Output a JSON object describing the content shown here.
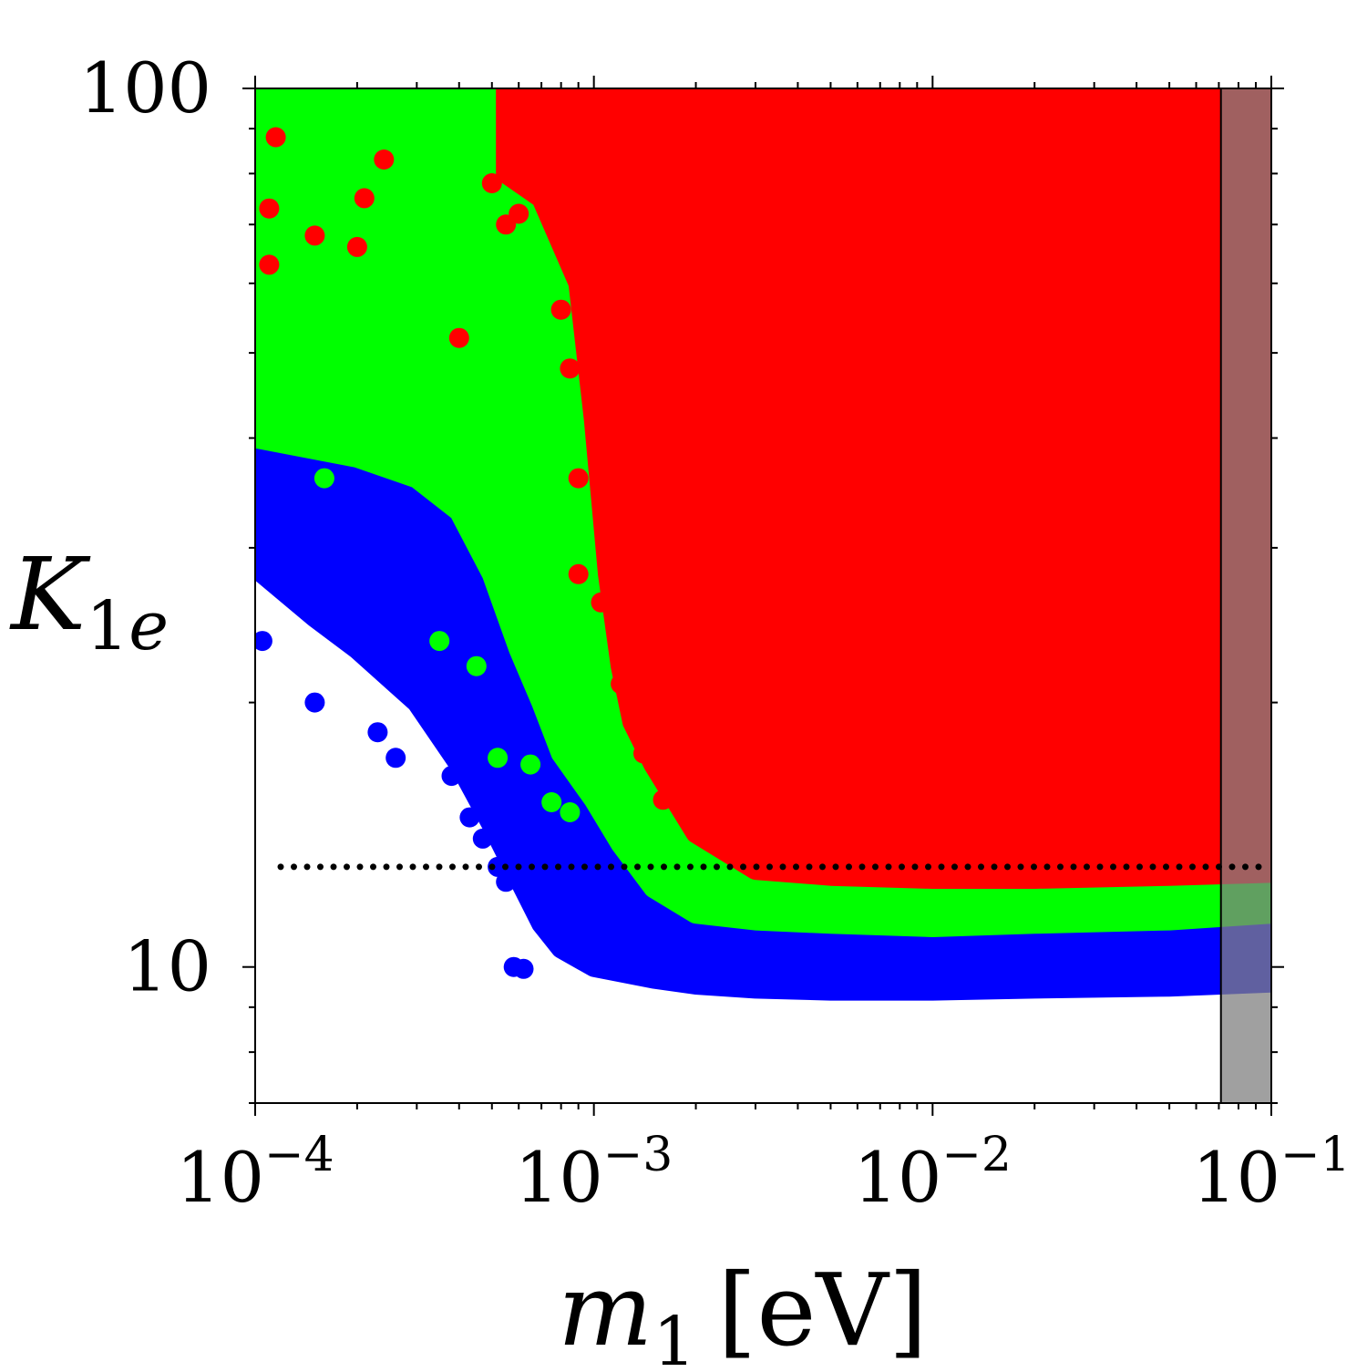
{
  "chart_data": {
    "type": "scatter",
    "title": "",
    "xlabel": {
      "var": "m",
      "sub": "1",
      "unit": "[eV]"
    },
    "ylabel": {
      "var": "K",
      "sub": "1",
      "sub_italic": "e"
    },
    "x_scale": "log",
    "y_scale": "log",
    "xlim": [
      0.0001,
      0.1
    ],
    "ylim": [
      7,
      100
    ],
    "x_ticks": [
      {
        "value": 0.0001,
        "base": "10",
        "exp": "−4"
      },
      {
        "value": 0.001,
        "base": "10",
        "exp": "−3"
      },
      {
        "value": 0.01,
        "base": "10",
        "exp": "−2"
      },
      {
        "value": 0.1,
        "base": "10",
        "exp": "−1"
      }
    ],
    "y_ticks": [
      {
        "value": 10,
        "label": "10"
      },
      {
        "value": 100,
        "label": "100"
      }
    ],
    "grid": false,
    "legend": "none",
    "series": [
      {
        "color": "#0000ff",
        "lower_boundary": [
          [
            0.0001,
            28.5
          ],
          [
            0.00015,
            25
          ],
          [
            0.0002,
            23
          ],
          [
            0.0003,
            20
          ],
          [
            0.0004,
            17
          ],
          [
            0.0005,
            14.5
          ],
          [
            0.0006,
            12.6
          ],
          [
            0.0007,
            11.2
          ],
          [
            0.0008,
            10.5
          ],
          [
            0.001,
            10.0
          ],
          [
            0.0015,
            9.7
          ],
          [
            0.002,
            9.55
          ],
          [
            0.003,
            9.45
          ],
          [
            0.005,
            9.4
          ],
          [
            0.01,
            9.4
          ],
          [
            0.02,
            9.45
          ],
          [
            0.05,
            9.5
          ],
          [
            0.1,
            9.6
          ]
        ],
        "scattered_points": [
          [
            0.000105,
            23.5
          ],
          [
            0.00015,
            20
          ],
          [
            0.00023,
            18.5
          ],
          [
            0.00026,
            17.3
          ],
          [
            0.00028,
            20.6
          ],
          [
            0.00032,
            19.6
          ],
          [
            0.00038,
            16.5
          ],
          [
            0.00043,
            14.8
          ],
          [
            0.00047,
            14.0
          ],
          [
            0.00052,
            13.0
          ],
          [
            0.00055,
            12.5
          ],
          [
            0.00058,
            10.0
          ],
          [
            0.00062,
            9.95
          ]
        ]
      },
      {
        "color": "#00ff00",
        "lower_boundary": [
          [
            0.0001,
            40
          ],
          [
            0.0002,
            38
          ],
          [
            0.0003,
            36
          ],
          [
            0.0004,
            33
          ],
          [
            0.0005,
            28
          ],
          [
            0.0006,
            23
          ],
          [
            0.0007,
            20
          ],
          [
            0.0008,
            17.5
          ],
          [
            0.001,
            15.5
          ],
          [
            0.0012,
            13.8
          ],
          [
            0.0015,
            12.3
          ],
          [
            0.002,
            11.5
          ],
          [
            0.003,
            11.3
          ],
          [
            0.005,
            11.2
          ],
          [
            0.01,
            11.1
          ],
          [
            0.02,
            11.2
          ],
          [
            0.05,
            11.3
          ],
          [
            0.1,
            11.5
          ]
        ],
        "scattered_points": [
          [
            0.000105,
            40.0
          ],
          [
            0.00016,
            36.0
          ],
          [
            0.00025,
            39.0
          ],
          [
            0.00035,
            23.5
          ],
          [
            0.00045,
            22.0
          ],
          [
            0.00052,
            17.3
          ],
          [
            0.00065,
            17.0
          ],
          [
            0.00075,
            15.4
          ],
          [
            0.00085,
            15.0
          ],
          [
            0.0011,
            16.2
          ],
          [
            0.0013,
            13.2
          ]
        ]
      },
      {
        "color": "#ff0000",
        "lower_boundary": [
          [
            0.00055,
            80
          ],
          [
            0.0007,
            75
          ],
          [
            0.0009,
            60
          ],
          [
            0.001,
            42
          ],
          [
            0.0011,
            28
          ],
          [
            0.0012,
            22
          ],
          [
            0.0013,
            19
          ],
          [
            0.0015,
            17
          ],
          [
            0.002,
            14.2
          ],
          [
            0.003,
            12.9
          ],
          [
            0.005,
            12.7
          ],
          [
            0.01,
            12.6
          ],
          [
            0.02,
            12.6
          ],
          [
            0.05,
            12.7
          ],
          [
            0.1,
            12.8
          ]
        ],
        "scattered_points": [
          [
            0.000115,
            88
          ],
          [
            0.00011,
            73
          ],
          [
            0.00011,
            63
          ],
          [
            0.00015,
            68
          ],
          [
            0.0002,
            66
          ],
          [
            0.00021,
            75
          ],
          [
            0.00024,
            83
          ],
          [
            0.0004,
            52
          ],
          [
            0.0005,
            78
          ],
          [
            0.00055,
            70
          ],
          [
            0.0006,
            72
          ],
          [
            0.00065,
            80
          ],
          [
            0.0008,
            56
          ],
          [
            0.00085,
            48
          ],
          [
            0.0009,
            36
          ],
          [
            0.0009,
            28
          ],
          [
            0.001,
            45
          ],
          [
            0.00105,
            26
          ],
          [
            0.0011,
            32
          ],
          [
            0.0012,
            21
          ],
          [
            0.0014,
            17.5
          ],
          [
            0.0016,
            15.5
          ]
        ]
      }
    ],
    "reference_lines": [
      {
        "orientation": "horizontal",
        "y": 13.0,
        "style": "dotted",
        "color": "#000000"
      }
    ],
    "shaded_regions": [
      {
        "x_from": 0.071,
        "x_to": 0.1,
        "color": "#808080",
        "opacity": 0.75
      }
    ]
  }
}
